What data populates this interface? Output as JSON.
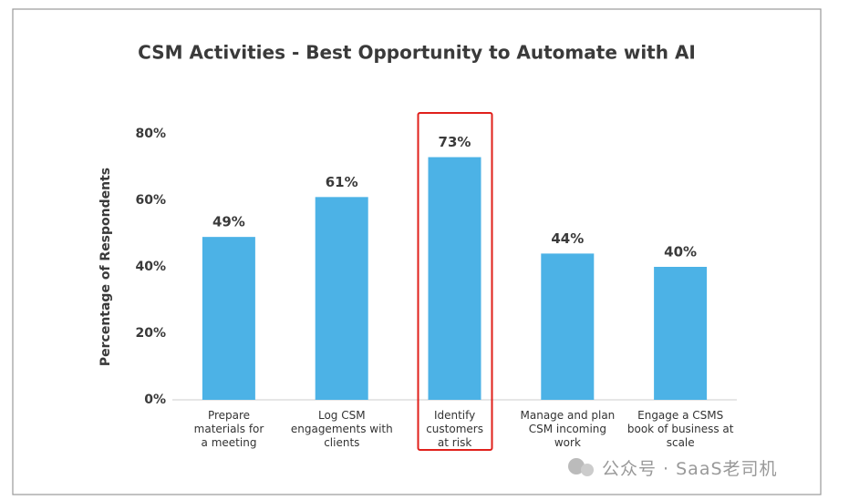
{
  "chart_data": {
    "type": "bar",
    "title": "CSM Activities  - Best Opportunity to Automate with AI",
    "y_label": "Percentage of Respondents",
    "categories": [
      "Prepare\nmaterials for\na meeting",
      "Log CSM\nengagements with\nclients",
      "Identify\ncustomers\nat risk",
      "Manage and plan\nCSM incoming\nwork",
      "Engage a CSMS\nbook of business at\nscale"
    ],
    "values": [
      49,
      61,
      73,
      44,
      40
    ],
    "value_labels": [
      "49%",
      "61%",
      "73%",
      "44%",
      "40%"
    ],
    "color": "#4cb2e6",
    "ylim": [
      0,
      80
    ],
    "yticks": [
      {
        "value": 0,
        "label": "0%"
      },
      {
        "value": 20,
        "label": "20%"
      },
      {
        "value": 40,
        "label": "40%"
      },
      {
        "value": 60,
        "label": "60%"
      },
      {
        "value": 80,
        "label": "80%"
      }
    ],
    "grid": false,
    "highlight": 2,
    "highlight_color": "#e0201b"
  },
  "watermark": "公众号 · SaaS老司机"
}
